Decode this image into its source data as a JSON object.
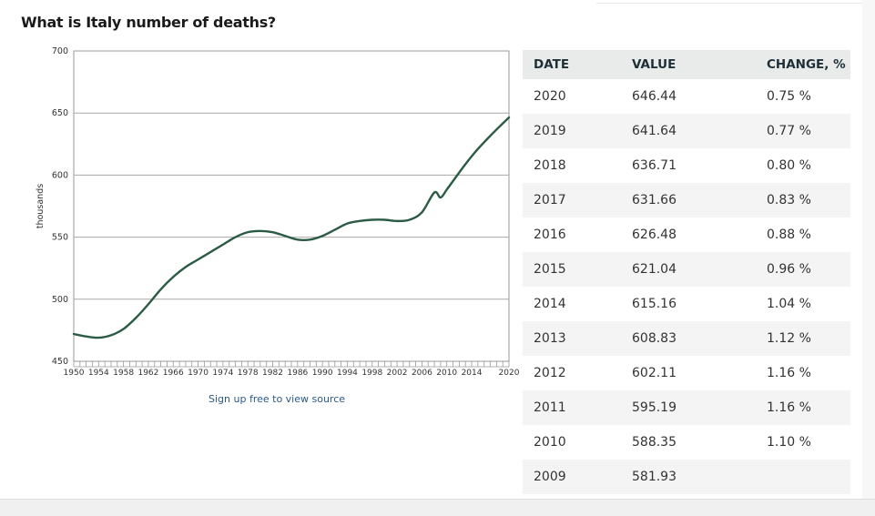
{
  "title": "What is Italy number of deaths?",
  "source_link": "Sign up free to view source",
  "chart_data": {
    "type": "line",
    "ylabel": "thousands",
    "ylim": [
      450,
      700
    ],
    "yticks": [
      450,
      500,
      550,
      600,
      650,
      700
    ],
    "xlim": [
      1950,
      2020
    ],
    "xtick_labels": [
      "1950",
      "1954",
      "1958",
      "1962",
      "1966",
      "1970",
      "1974",
      "1978",
      "1982",
      "1986",
      "1990",
      "1994",
      "1998",
      "2002",
      "2006",
      "2010",
      "2014",
      "2020"
    ],
    "line_color": "#2b5b45",
    "series": [
      {
        "name": "Italy number of deaths",
        "x": [
          1950,
          1952,
          1954,
          1956,
          1958,
          1960,
          1962,
          1964,
          1966,
          1968,
          1970,
          1972,
          1974,
          1976,
          1978,
          1980,
          1982,
          1984,
          1986,
          1988,
          1990,
          1992,
          1994,
          1996,
          1998,
          2000,
          2002,
          2004,
          2006,
          2008,
          2009,
          2010,
          2011,
          2012,
          2013,
          2014,
          2015,
          2016,
          2017,
          2018,
          2019,
          2020
        ],
        "y": [
          472,
          470,
          469,
          471,
          476,
          485,
          496,
          508,
          518,
          526,
          532,
          538,
          544,
          550,
          554,
          555,
          554,
          551,
          548,
          548,
          551,
          556,
          561,
          563,
          564,
          564,
          563,
          564,
          570,
          586,
          581.93,
          588.35,
          595.19,
          602.11,
          608.83,
          615.16,
          621.04,
          626.48,
          631.66,
          636.71,
          641.64,
          646.44
        ]
      }
    ]
  },
  "table": {
    "headers": [
      "DATE",
      "VALUE",
      "CHANGE, %"
    ],
    "rows": [
      [
        "2020",
        "646.44",
        "0.75 %"
      ],
      [
        "2019",
        "641.64",
        "0.77 %"
      ],
      [
        "2018",
        "636.71",
        "0.80 %"
      ],
      [
        "2017",
        "631.66",
        "0.83 %"
      ],
      [
        "2016",
        "626.48",
        "0.88 %"
      ],
      [
        "2015",
        "621.04",
        "0.96 %"
      ],
      [
        "2014",
        "615.16",
        "1.04 %"
      ],
      [
        "2013",
        "608.83",
        "1.12 %"
      ],
      [
        "2012",
        "602.11",
        "1.16 %"
      ],
      [
        "2011",
        "595.19",
        "1.16 %"
      ],
      [
        "2010",
        "588.35",
        "1.10 %"
      ],
      [
        "2009",
        "581.93",
        ""
      ]
    ]
  }
}
